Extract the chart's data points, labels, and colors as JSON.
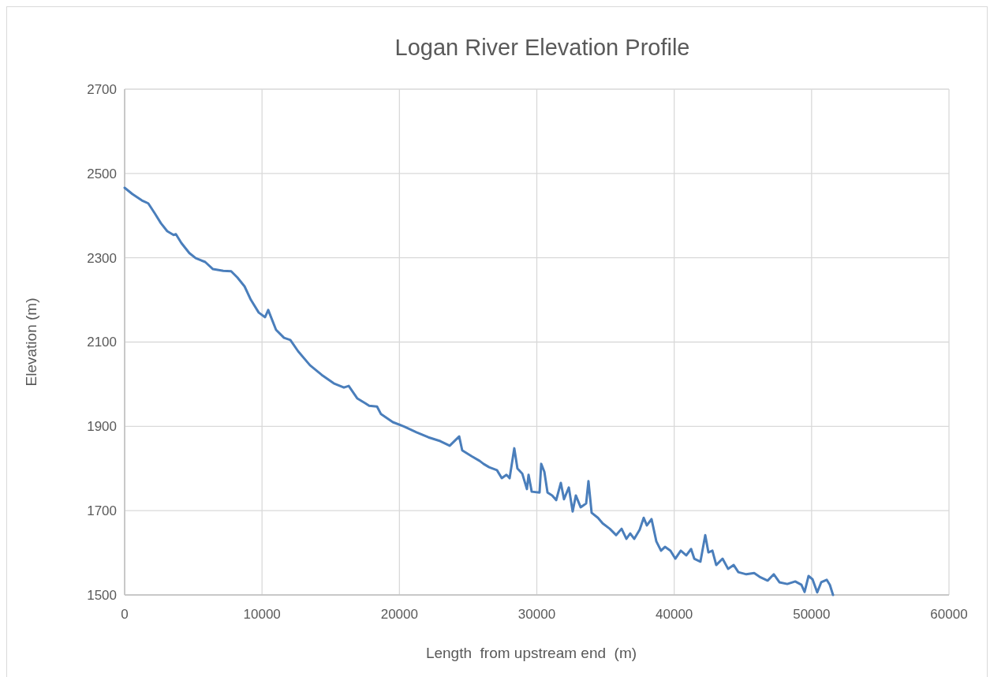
{
  "chart_data": {
    "type": "line",
    "title": "Logan River Elevation Profile",
    "xlabel": "Length  from upstream end  (m)",
    "ylabel": "Elevation (m)",
    "xlim": [
      0,
      60000
    ],
    "xticks": [
      0,
      10000,
      20000,
      30000,
      40000,
      50000,
      60000
    ],
    "ylim": [
      1500,
      2700
    ],
    "yticks": [
      1500,
      1700,
      1900,
      2100,
      2300,
      2500,
      2700
    ],
    "grid": true,
    "marker": "none",
    "line_style": "solid",
    "series": [
      {
        "color": "#4a7ebb",
        "x": [
          0,
          570,
          1260,
          1720,
          2180,
          2640,
          3100,
          3560,
          3730,
          4130,
          4710,
          5170,
          5860,
          6430,
          7180,
          7750,
          8210,
          8730,
          9190,
          9760,
          10220,
          10450,
          11020,
          11600,
          12060,
          12630,
          13490,
          14350,
          15220,
          15960,
          16310,
          16940,
          17510,
          17800,
          18370,
          18660,
          19520,
          20380,
          21240,
          22110,
          22970,
          23660,
          24350,
          24570,
          25260,
          25840,
          26120,
          26530,
          27100,
          27450,
          27790,
          28020,
          28360,
          28590,
          28940,
          29280,
          29400,
          29630,
          30200,
          30320,
          30550,
          30780,
          31120,
          31410,
          31750,
          31980,
          32330,
          32610,
          32840,
          33190,
          33590,
          33760,
          33990,
          34450,
          34790,
          35310,
          35770,
          36170,
          36520,
          36800,
          37090,
          37490,
          37780,
          38010,
          38350,
          38700,
          39040,
          39330,
          39730,
          40080,
          40480,
          40880,
          41230,
          41460,
          41910,
          42260,
          42490,
          42780,
          43060,
          43520,
          43920,
          44330,
          44670,
          45250,
          45820,
          46220,
          46800,
          47250,
          47660,
          48230,
          48810,
          49260,
          49490,
          49780,
          50070,
          50410,
          50700,
          51100,
          51330,
          51560
        ],
        "values": [
          2466,
          2451,
          2436,
          2429,
          2406,
          2382,
          2363,
          2354,
          2356,
          2335,
          2311,
          2299,
          2290,
          2273,
          2269,
          2268,
          2253,
          2232,
          2200,
          2170,
          2159,
          2176,
          2129,
          2110,
          2105,
          2078,
          2045,
          2022,
          2002,
          1992,
          1996,
          1966,
          1955,
          1949,
          1947,
          1929,
          1910,
          1899,
          1886,
          1874,
          1865,
          1854,
          1876,
          1843,
          1829,
          1818,
          1811,
          1803,
          1796,
          1777,
          1785,
          1777,
          1848,
          1800,
          1788,
          1751,
          1785,
          1745,
          1743,
          1811,
          1792,
          1743,
          1736,
          1725,
          1766,
          1727,
          1755,
          1698,
          1736,
          1708,
          1717,
          1770,
          1695,
          1683,
          1670,
          1657,
          1642,
          1657,
          1633,
          1646,
          1633,
          1655,
          1683,
          1665,
          1680,
          1627,
          1605,
          1614,
          1605,
          1586,
          1605,
          1594,
          1609,
          1586,
          1579,
          1642,
          1601,
          1605,
          1571,
          1586,
          1562,
          1571,
          1554,
          1549,
          1552,
          1543,
          1534,
          1549,
          1530,
          1526,
          1532,
          1524,
          1507,
          1545,
          1537,
          1506,
          1530,
          1536,
          1524,
          1500
        ]
      }
    ]
  }
}
